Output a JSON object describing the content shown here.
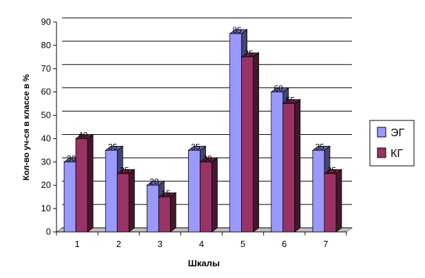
{
  "chart_data": {
    "type": "bar",
    "xlabel": "Шкалы",
    "ylabel": "Кол-во уч-ся в классе в %",
    "ylim": [
      0,
      90
    ],
    "yticks": [
      0,
      10,
      20,
      30,
      40,
      50,
      60,
      70,
      80,
      90
    ],
    "grid": true,
    "legend_position": "right",
    "categories": [
      "1",
      "2",
      "3",
      "4",
      "5",
      "6",
      "7"
    ],
    "series": [
      {
        "name": "ЭГ",
        "values": [
          30,
          35,
          20,
          35,
          85,
          60,
          35
        ],
        "color": "#9999ff"
      },
      {
        "name": "КГ",
        "values": [
          40,
          25,
          15,
          30,
          75,
          55,
          25
        ],
        "color": "#993366"
      }
    ]
  }
}
